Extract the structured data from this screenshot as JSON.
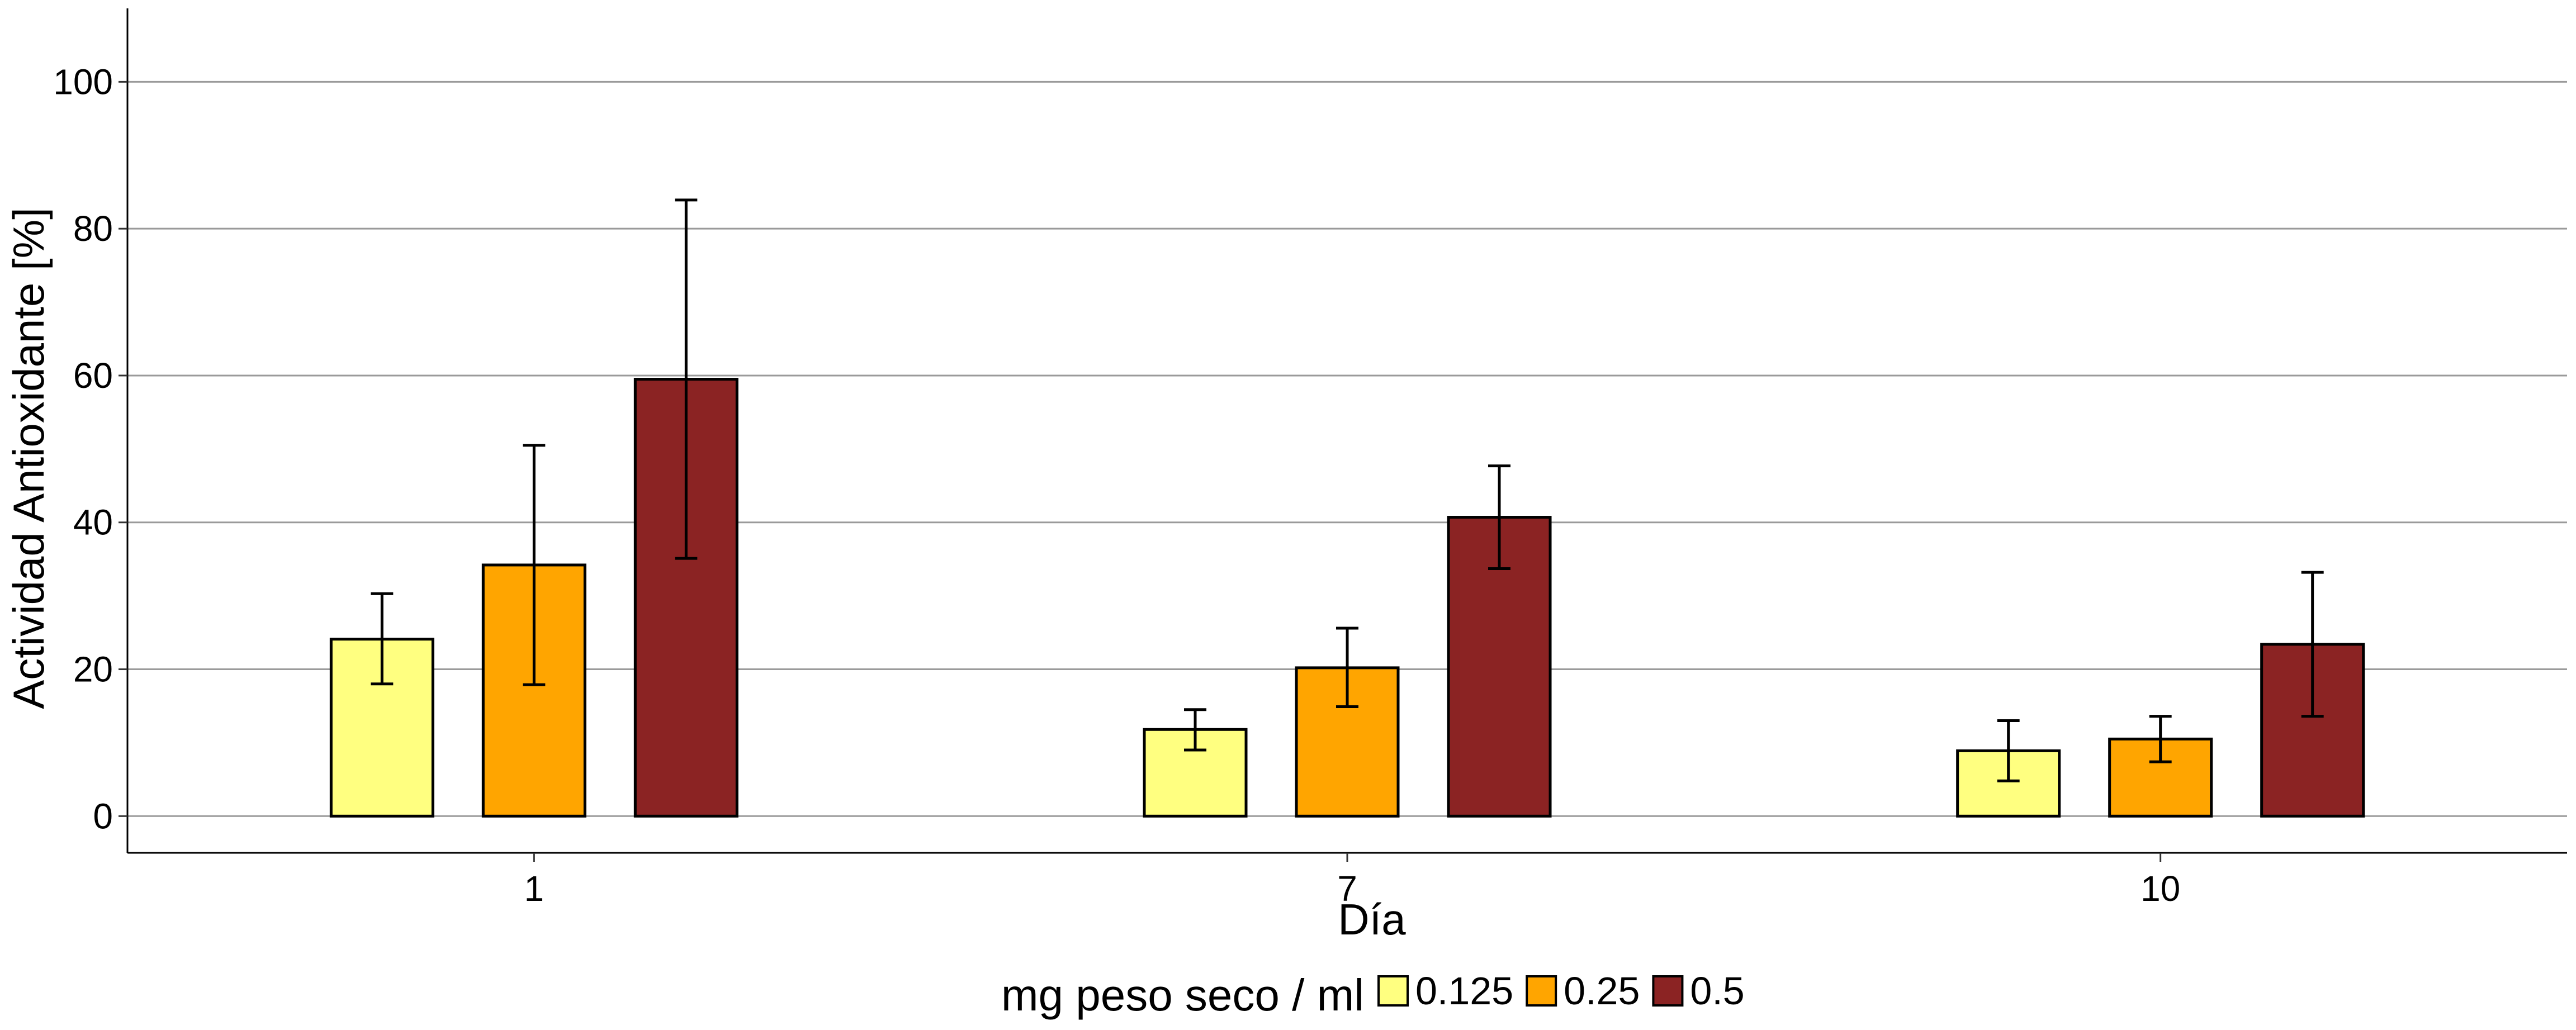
{
  "chart_data": {
    "type": "bar",
    "xlabel": "Día",
    "ylabel": "Actividad Antioxidante [%]",
    "categories": [
      "1",
      "7",
      "10"
    ],
    "ylim": [
      -5,
      110
    ],
    "yticks": [
      0,
      20,
      40,
      60,
      80,
      100
    ],
    "grid": "horizontal major",
    "legend": {
      "position": "bottom",
      "title": "mg peso seco / ml"
    },
    "series": [
      {
        "name": "0.125",
        "color": "#FFFF80",
        "values": [
          24.1,
          11.8,
          8.9
        ],
        "error_low": [
          18.0,
          9.0,
          4.8
        ],
        "error_high": [
          30.3,
          14.5,
          13.0
        ]
      },
      {
        "name": "0.25",
        "color": "#FFA500",
        "values": [
          34.2,
          20.2,
          10.5
        ],
        "error_low": [
          17.9,
          14.9,
          7.4
        ],
        "error_high": [
          50.5,
          25.6,
          13.6
        ]
      },
      {
        "name": "0.5",
        "color": "#8B2323",
        "values": [
          59.5,
          40.7,
          23.4
        ],
        "error_low": [
          35.1,
          33.7,
          13.6
        ],
        "error_high": [
          83.9,
          47.7,
          33.2
        ]
      }
    ]
  }
}
